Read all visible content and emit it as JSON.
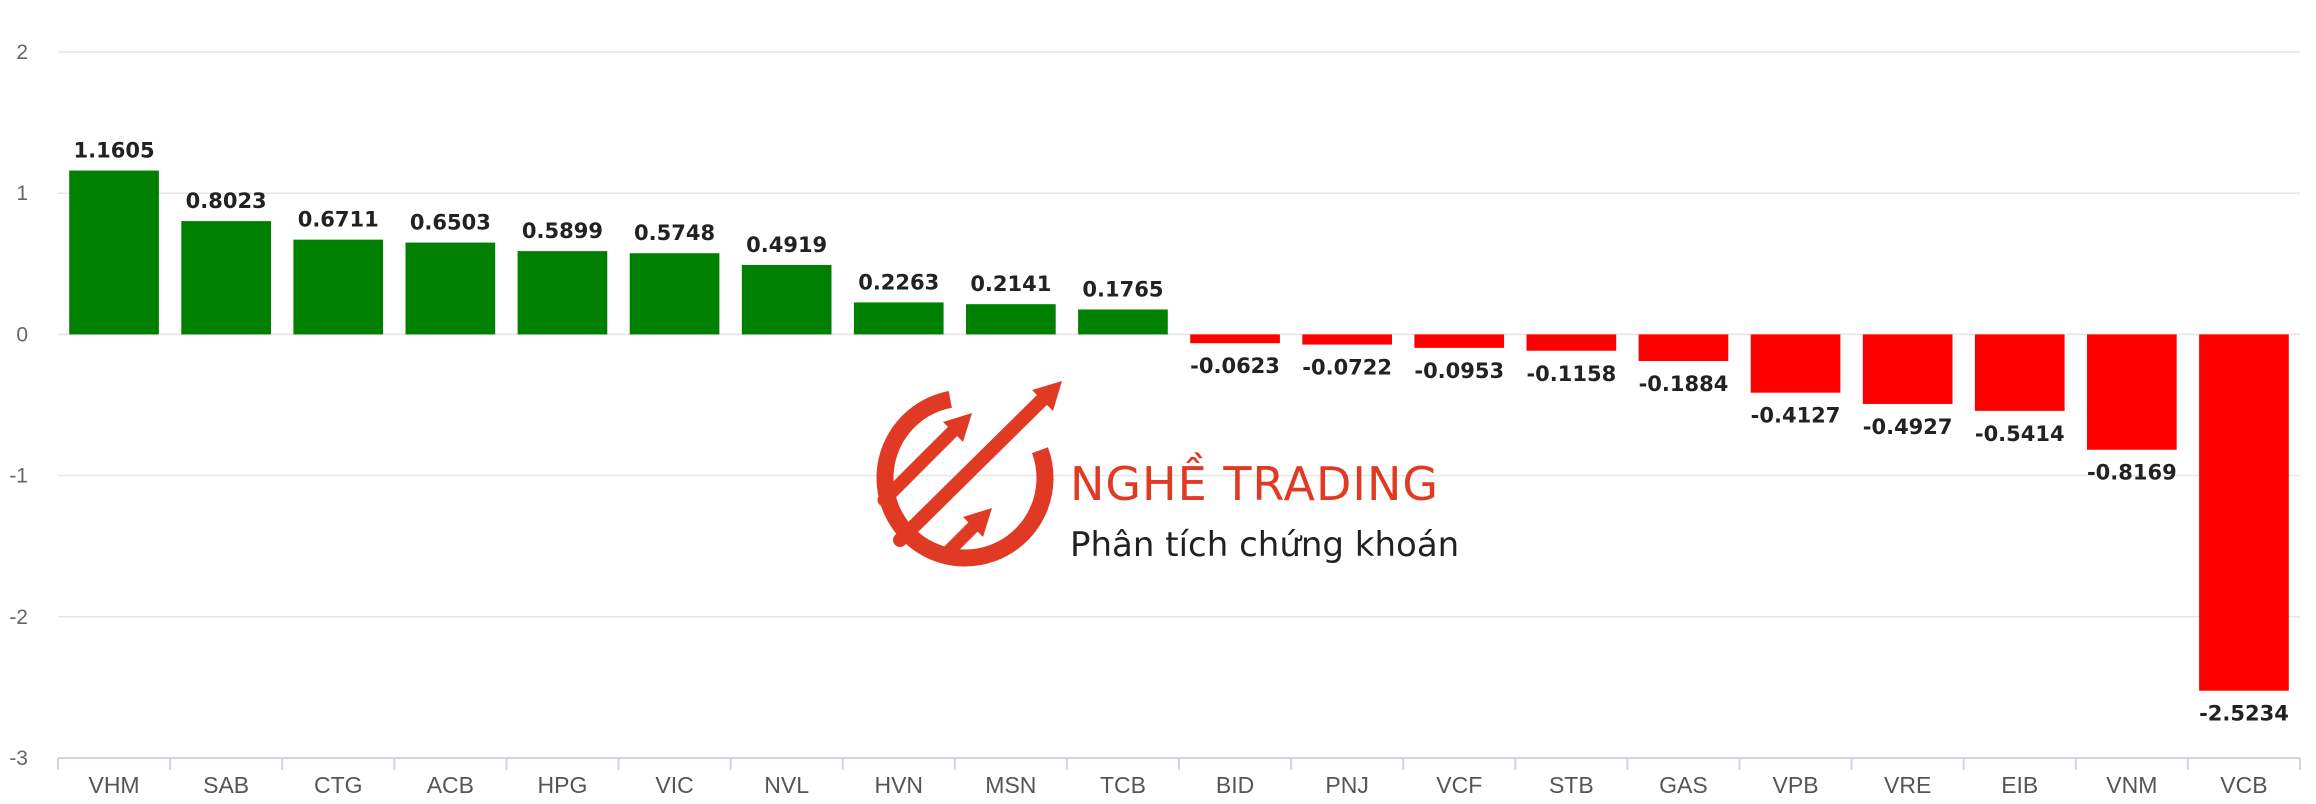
{
  "chart_data": {
    "type": "bar",
    "categories": [
      "VHM",
      "SAB",
      "CTG",
      "ACB",
      "HPG",
      "VIC",
      "NVL",
      "HVN",
      "MSN",
      "TCB",
      "BID",
      "PNJ",
      "VCF",
      "STB",
      "GAS",
      "VPB",
      "VRE",
      "EIB",
      "VNM",
      "VCB"
    ],
    "values": [
      1.1605,
      0.8023,
      0.6711,
      0.6503,
      0.5899,
      0.5748,
      0.4919,
      0.2263,
      0.2141,
      0.1765,
      -0.0623,
      -0.0722,
      -0.0953,
      -0.1158,
      -0.1884,
      -0.4127,
      -0.4927,
      -0.5414,
      -0.8169,
      -2.5234
    ],
    "data_labels": [
      "1.1605",
      "0.8023",
      "0.6711",
      "0.6503",
      "0.5899",
      "0.5748",
      "0.4919",
      "0.2263",
      "0.2141",
      "0.1765",
      "-0.0623",
      "-0.0722",
      "-0.0953",
      "-0.1158",
      "-0.1884",
      "-0.4127",
      "-0.4927",
      "-0.5414",
      "-0.8169",
      "-2.5234"
    ],
    "yticks": [
      "2",
      "1",
      "0",
      "-1",
      "-2",
      "-3"
    ],
    "ylim": [
      -3,
      2
    ],
    "grid": true,
    "colors": {
      "positive": "#008000",
      "negative": "#ff0000"
    }
  },
  "watermark": {
    "brand": "NGHỀ TRADING",
    "tagline": "Phân tích chứng khoán",
    "color": "#e0341e",
    "icon": "growth-arrows-logo"
  }
}
